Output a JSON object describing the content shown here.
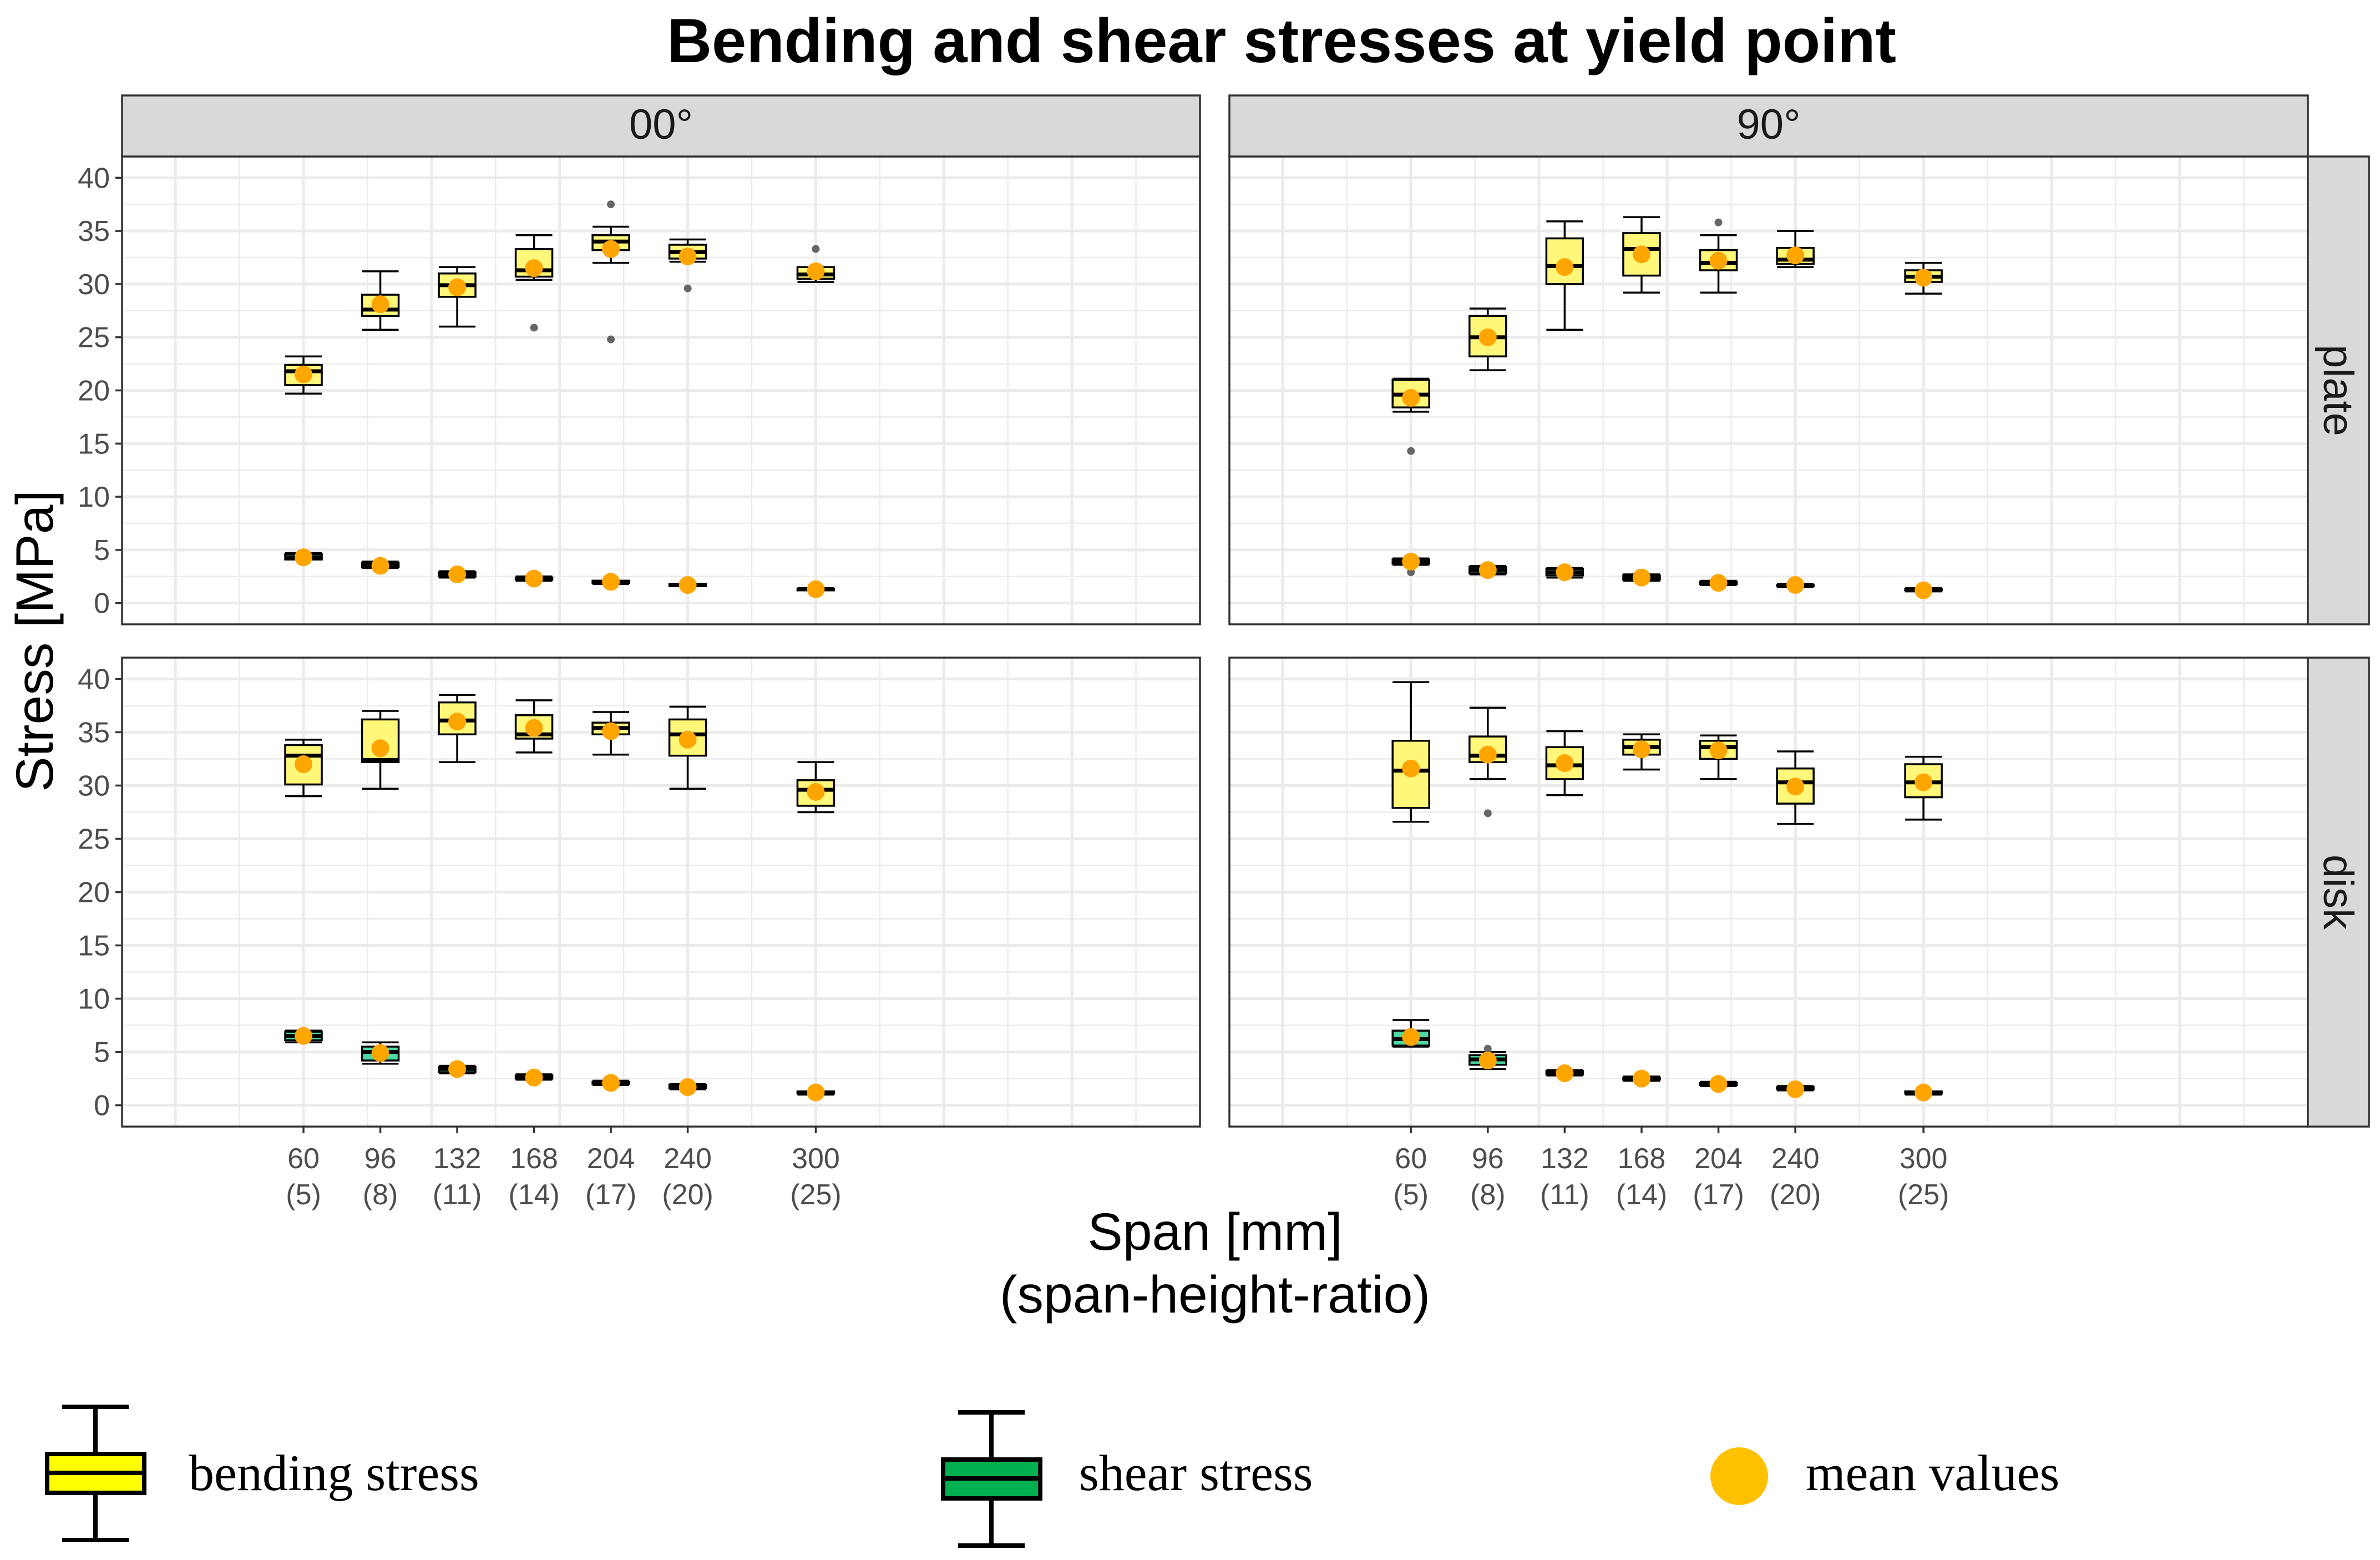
{
  "chart_data": {
    "type": "box",
    "title": "Bending and shear stresses at yield point",
    "ylabel": "Stress [MPa]",
    "xlabel": "Span [mm]",
    "xlabel_sub": "(span-height-ratio)",
    "ylim": [
      -2,
      42
    ],
    "yticks": [
      0,
      5,
      10,
      15,
      20,
      25,
      30,
      35,
      40
    ],
    "grid": true,
    "column_facets": [
      "00°",
      "90°"
    ],
    "row_facets": [
      "plate",
      "disk"
    ],
    "x_range": [
      -25,
      480
    ],
    "x_positions": [
      60,
      96,
      132,
      168,
      204,
      240,
      300
    ],
    "x_tick_labels": [
      "60",
      "96",
      "132",
      "168",
      "204",
      "240",
      "300"
    ],
    "x_tick_sublabels": [
      "(5)",
      "(8)",
      "(11)",
      "(14)",
      "(17)",
      "(20)",
      "(25)"
    ],
    "colors": {
      "bending_fill": "#fff77a",
      "shear_fill": "#4dd9a6",
      "mean": "#ffa500",
      "outlier": "#666666",
      "strip": "#d9d9d9",
      "grid": "#ebebeb",
      "legend_bending": "#ffff00",
      "legend_shear": "#00b050",
      "legend_mean": "#ffc000"
    },
    "legend": {
      "position": "bottom",
      "items": [
        "bending stress",
        "shear stress",
        "mean values"
      ]
    },
    "panels": [
      {
        "col": "00°",
        "row": "plate",
        "bending": [
          {
            "x": 60,
            "min": 19.7,
            "q1": 20.5,
            "med": 21.8,
            "q3": 22.4,
            "max": 23.2,
            "mean": 21.5,
            "outliers": []
          },
          {
            "x": 96,
            "min": 25.7,
            "q1": 27.0,
            "med": 27.6,
            "q3": 29.0,
            "max": 31.2,
            "mean": 28.1,
            "outliers": []
          },
          {
            "x": 132,
            "min": 26.0,
            "q1": 28.8,
            "med": 29.9,
            "q3": 31.0,
            "max": 31.6,
            "mean": 29.7,
            "outliers": []
          },
          {
            "x": 168,
            "min": 30.4,
            "q1": 30.7,
            "med": 31.3,
            "q3": 33.3,
            "max": 34.6,
            "mean": 31.5,
            "outliers": [
              25.9
            ]
          },
          {
            "x": 204,
            "min": 32.0,
            "q1": 33.2,
            "med": 34.0,
            "q3": 34.6,
            "max": 35.4,
            "mean": 33.3,
            "outliers": [
              37.5,
              24.8
            ]
          },
          {
            "x": 240,
            "min": 32.1,
            "q1": 32.4,
            "med": 33.0,
            "q3": 33.7,
            "max": 34.2,
            "mean": 32.6,
            "outliers": [
              29.6
            ]
          },
          {
            "x": 300,
            "min": 30.2,
            "q1": 30.5,
            "med": 30.9,
            "q3": 31.6,
            "max": 31.6,
            "mean": 31.2,
            "outliers": [
              33.3
            ]
          }
        ],
        "shear": [
          {
            "x": 60,
            "min": 4.1,
            "q1": 4.1,
            "med": 4.3,
            "q3": 4.6,
            "max": 4.7,
            "mean": 4.3,
            "outliers": []
          },
          {
            "x": 96,
            "min": 3.3,
            "q1": 3.4,
            "med": 3.6,
            "q3": 3.8,
            "max": 3.9,
            "mean": 3.5,
            "outliers": []
          },
          {
            "x": 132,
            "min": 2.4,
            "q1": 2.5,
            "med": 2.7,
            "q3": 2.9,
            "max": 3.0,
            "mean": 2.7,
            "outliers": []
          },
          {
            "x": 168,
            "min": 2.1,
            "q1": 2.2,
            "med": 2.3,
            "q3": 2.4,
            "max": 2.5,
            "mean": 2.3,
            "outliers": []
          },
          {
            "x": 204,
            "min": 1.8,
            "q1": 1.9,
            "med": 2.0,
            "q3": 2.1,
            "max": 2.1,
            "mean": 2.0,
            "outliers": []
          },
          {
            "x": 240,
            "min": 1.6,
            "q1": 1.6,
            "med": 1.7,
            "q3": 1.8,
            "max": 1.8,
            "mean": 1.7,
            "outliers": []
          },
          {
            "x": 300,
            "min": 1.2,
            "q1": 1.2,
            "med": 1.3,
            "q3": 1.3,
            "max": 1.4,
            "mean": 1.3,
            "outliers": []
          }
        ]
      },
      {
        "col": "90°",
        "row": "plate",
        "bending": [
          {
            "x": 60,
            "min": 18.0,
            "q1": 18.4,
            "med": 19.6,
            "q3": 21.0,
            "max": 21.1,
            "mean": 19.3,
            "outliers": [
              14.3
            ]
          },
          {
            "x": 96,
            "min": 21.9,
            "q1": 23.2,
            "med": 25.0,
            "q3": 27.0,
            "max": 27.7,
            "mean": 25.0,
            "outliers": []
          },
          {
            "x": 132,
            "min": 25.7,
            "q1": 30.0,
            "med": 31.7,
            "q3": 34.3,
            "max": 35.9,
            "mean": 31.6,
            "outliers": []
          },
          {
            "x": 168,
            "min": 29.2,
            "q1": 30.8,
            "med": 33.3,
            "q3": 34.8,
            "max": 36.3,
            "mean": 32.8,
            "outliers": []
          },
          {
            "x": 204,
            "min": 29.2,
            "q1": 31.3,
            "med": 32.0,
            "q3": 33.2,
            "max": 34.6,
            "mean": 32.2,
            "outliers": [
              35.8
            ]
          },
          {
            "x": 240,
            "min": 31.6,
            "q1": 31.9,
            "med": 32.3,
            "q3": 33.4,
            "max": 35.0,
            "mean": 32.7,
            "outliers": []
          },
          {
            "x": 300,
            "min": 29.1,
            "q1": 30.2,
            "med": 30.7,
            "q3": 31.3,
            "max": 32.0,
            "mean": 30.6,
            "outliers": []
          }
        ],
        "shear": [
          {
            "x": 60,
            "min": 3.6,
            "q1": 3.7,
            "med": 3.9,
            "q3": 4.1,
            "max": 4.2,
            "mean": 3.9,
            "outliers": [
              2.9
            ]
          },
          {
            "x": 96,
            "min": 2.7,
            "q1": 2.8,
            "med": 3.1,
            "q3": 3.4,
            "max": 3.5,
            "mean": 3.1,
            "outliers": []
          },
          {
            "x": 132,
            "min": 2.4,
            "q1": 2.6,
            "med": 2.9,
            "q3": 3.2,
            "max": 3.3,
            "mean": 2.9,
            "outliers": []
          },
          {
            "x": 168,
            "min": 2.1,
            "q1": 2.2,
            "med": 2.4,
            "q3": 2.6,
            "max": 2.7,
            "mean": 2.4,
            "outliers": []
          },
          {
            "x": 204,
            "min": 1.7,
            "q1": 1.8,
            "med": 1.9,
            "q3": 2.0,
            "max": 2.1,
            "mean": 1.9,
            "outliers": []
          },
          {
            "x": 240,
            "min": 1.5,
            "q1": 1.6,
            "med": 1.7,
            "q3": 1.7,
            "max": 1.8,
            "mean": 1.7,
            "outliers": []
          },
          {
            "x": 300,
            "min": 1.1,
            "q1": 1.2,
            "med": 1.3,
            "q3": 1.3,
            "max": 1.4,
            "mean": 1.2,
            "outliers": []
          }
        ]
      },
      {
        "col": "00°",
        "row": "disk",
        "bending": [
          {
            "x": 60,
            "min": 29.0,
            "q1": 30.1,
            "med": 32.8,
            "q3": 33.8,
            "max": 34.3,
            "mean": 32.0,
            "outliers": []
          },
          {
            "x": 96,
            "min": 29.7,
            "q1": 32.2,
            "med": 32.4,
            "q3": 36.2,
            "max": 37.0,
            "mean": 33.5,
            "outliers": []
          },
          {
            "x": 132,
            "min": 32.2,
            "q1": 34.8,
            "med": 36.1,
            "q3": 37.8,
            "max": 38.5,
            "mean": 36.0,
            "outliers": []
          },
          {
            "x": 168,
            "min": 33.1,
            "q1": 34.4,
            "med": 34.8,
            "q3": 36.6,
            "max": 38.0,
            "mean": 35.4,
            "outliers": []
          },
          {
            "x": 204,
            "min": 32.9,
            "q1": 34.8,
            "med": 35.4,
            "q3": 35.9,
            "max": 36.9,
            "mean": 35.1,
            "outliers": []
          },
          {
            "x": 240,
            "min": 29.7,
            "q1": 32.8,
            "med": 34.8,
            "q3": 36.2,
            "max": 37.4,
            "mean": 34.3,
            "outliers": []
          },
          {
            "x": 300,
            "min": 27.5,
            "q1": 28.1,
            "med": 29.6,
            "q3": 30.5,
            "max": 32.2,
            "mean": 29.4,
            "outliers": []
          }
        ],
        "shear": [
          {
            "x": 60,
            "min": 5.9,
            "q1": 6.1,
            "med": 6.5,
            "q3": 6.9,
            "max": 7.0,
            "mean": 6.5,
            "outliers": []
          },
          {
            "x": 96,
            "min": 3.9,
            "q1": 4.2,
            "med": 5.0,
            "q3": 5.5,
            "max": 5.9,
            "mean": 4.9,
            "outliers": []
          },
          {
            "x": 132,
            "min": 3.0,
            "q1": 3.1,
            "med": 3.4,
            "q3": 3.6,
            "max": 3.7,
            "mean": 3.4,
            "outliers": []
          },
          {
            "x": 168,
            "min": 2.4,
            "q1": 2.5,
            "med": 2.6,
            "q3": 2.8,
            "max": 2.9,
            "mean": 2.6,
            "outliers": []
          },
          {
            "x": 204,
            "min": 1.9,
            "q1": 2.0,
            "med": 2.1,
            "q3": 2.2,
            "max": 2.3,
            "mean": 2.1,
            "outliers": []
          },
          {
            "x": 240,
            "min": 1.5,
            "q1": 1.6,
            "med": 1.8,
            "q3": 1.9,
            "max": 2.0,
            "mean": 1.7,
            "outliers": []
          },
          {
            "x": 300,
            "min": 1.0,
            "q1": 1.1,
            "med": 1.2,
            "q3": 1.3,
            "max": 1.3,
            "mean": 1.2,
            "outliers": []
          }
        ]
      },
      {
        "col": "90°",
        "row": "disk",
        "bending": [
          {
            "x": 60,
            "min": 26.6,
            "q1": 27.9,
            "med": 31.4,
            "q3": 34.2,
            "max": 39.7,
            "mean": 31.6,
            "outliers": []
          },
          {
            "x": 96,
            "min": 30.6,
            "q1": 32.2,
            "med": 32.8,
            "q3": 34.6,
            "max": 37.3,
            "mean": 32.9,
            "outliers": [
              27.4
            ]
          },
          {
            "x": 132,
            "min": 29.1,
            "q1": 30.6,
            "med": 31.9,
            "q3": 33.6,
            "max": 35.1,
            "mean": 32.1,
            "outliers": []
          },
          {
            "x": 168,
            "min": 31.5,
            "q1": 32.9,
            "med": 33.6,
            "q3": 34.3,
            "max": 34.8,
            "mean": 33.4,
            "outliers": []
          },
          {
            "x": 204,
            "min": 30.6,
            "q1": 32.5,
            "med": 33.6,
            "q3": 34.2,
            "max": 34.7,
            "mean": 33.3,
            "outliers": []
          },
          {
            "x": 240,
            "min": 26.4,
            "q1": 28.3,
            "med": 30.3,
            "q3": 31.6,
            "max": 33.2,
            "mean": 29.9,
            "outliers": []
          },
          {
            "x": 300,
            "min": 26.8,
            "q1": 28.9,
            "med": 30.3,
            "q3": 32.0,
            "max": 32.7,
            "mean": 30.3,
            "outliers": []
          }
        ],
        "shear": [
          {
            "x": 60,
            "min": 5.5,
            "q1": 5.6,
            "med": 6.2,
            "q3": 7.0,
            "max": 8.0,
            "mean": 6.4,
            "outliers": []
          },
          {
            "x": 96,
            "min": 3.4,
            "q1": 3.8,
            "med": 4.3,
            "q3": 4.7,
            "max": 5.0,
            "mean": 4.2,
            "outliers": [
              5.3
            ]
          },
          {
            "x": 132,
            "min": 2.8,
            "q1": 2.9,
            "med": 3.0,
            "q3": 3.2,
            "max": 3.3,
            "mean": 3.0,
            "outliers": []
          },
          {
            "x": 168,
            "min": 2.3,
            "q1": 2.4,
            "med": 2.5,
            "q3": 2.6,
            "max": 2.7,
            "mean": 2.5,
            "outliers": []
          },
          {
            "x": 204,
            "min": 1.8,
            "q1": 1.9,
            "med": 2.0,
            "q3": 2.1,
            "max": 2.2,
            "mean": 2.0,
            "outliers": []
          },
          {
            "x": 240,
            "min": 1.4,
            "q1": 1.5,
            "med": 1.6,
            "q3": 1.7,
            "max": 1.8,
            "mean": 1.5,
            "outliers": []
          },
          {
            "x": 300,
            "min": 1.0,
            "q1": 1.1,
            "med": 1.2,
            "q3": 1.3,
            "max": 1.3,
            "mean": 1.2,
            "outliers": []
          }
        ]
      }
    ]
  }
}
